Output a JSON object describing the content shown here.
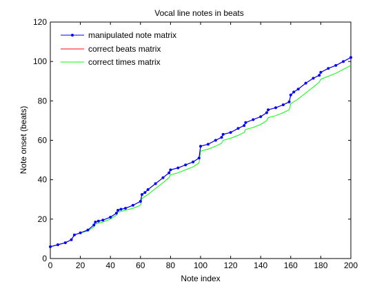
{
  "chart_data": {
    "type": "line",
    "title": "Vocal line notes in beats",
    "xlabel": "Note index",
    "ylabel": "Note onset (beats)",
    "xlim": [
      0,
      200
    ],
    "ylim": [
      0,
      120
    ],
    "xticks": [
      0,
      20,
      40,
      60,
      80,
      100,
      120,
      140,
      160,
      180,
      200
    ],
    "yticks": [
      0,
      20,
      40,
      60,
      80,
      100,
      120
    ],
    "grid": false,
    "legend_position": "top-left",
    "series": [
      {
        "name": "manipulated note matrix",
        "color": "#0000ff",
        "marker": "dot",
        "x": [
          0,
          5,
          10,
          14,
          16,
          20,
          25,
          29,
          30,
          32,
          35,
          40,
          44,
          45,
          47,
          50,
          55,
          60,
          61,
          63,
          65,
          70,
          75,
          79,
          80,
          85,
          90,
          95,
          99,
          100,
          105,
          110,
          114,
          115,
          120,
          125,
          129,
          130,
          135,
          140,
          144,
          145,
          150,
          155,
          159,
          160,
          162,
          165,
          170,
          175,
          179,
          180,
          185,
          190,
          195,
          200
        ],
        "y": [
          6,
          7,
          8,
          9.5,
          12,
          13,
          14.5,
          17,
          18.5,
          19,
          19.5,
          21,
          23,
          24.5,
          25,
          25.5,
          27,
          29,
          32.5,
          33.5,
          35,
          38,
          41,
          43.5,
          45,
          46,
          47.5,
          49,
          51,
          57,
          58,
          60,
          61.5,
          63,
          64,
          66,
          67.5,
          69,
          70.5,
          72,
          74,
          75.5,
          76.5,
          78,
          79.5,
          83,
          84.5,
          86,
          89,
          91.5,
          93,
          94.5,
          96.5,
          98,
          100,
          102
        ]
      },
      {
        "name": "correct beats matrix",
        "color": "#ff0000",
        "x": [
          0,
          5,
          10,
          14,
          16,
          20,
          25,
          29,
          30,
          32,
          35,
          40,
          44,
          45,
          47,
          50,
          55,
          60,
          61,
          63,
          65,
          70,
          75,
          79,
          80,
          85,
          90,
          95,
          99,
          100,
          105,
          110,
          114,
          115,
          120,
          125,
          129,
          130,
          135,
          140,
          144,
          145,
          150,
          155,
          159,
          160,
          162,
          165,
          170,
          175,
          179,
          180,
          185,
          190,
          195,
          200
        ],
        "y": [
          6,
          7,
          8,
          9.5,
          12,
          13,
          14.5,
          17,
          18.5,
          19,
          19.5,
          21,
          23,
          24.5,
          25,
          25.5,
          27,
          29,
          32.5,
          33.5,
          35,
          38,
          41,
          43.5,
          45,
          46,
          47.5,
          49,
          51,
          57,
          58,
          60,
          61.5,
          63,
          64,
          66,
          67.5,
          69,
          70.5,
          72,
          74,
          75.5,
          76.5,
          78,
          79.5,
          83,
          84.5,
          86,
          89,
          91.5,
          93,
          94.5,
          96.5,
          98,
          100,
          102
        ]
      },
      {
        "name": "correct times matrix",
        "color": "#00ff00",
        "x": [
          0,
          5,
          10,
          14,
          16,
          20,
          25,
          29,
          30,
          35,
          40,
          44,
          45,
          50,
          55,
          60,
          61,
          65,
          70,
          75,
          79,
          80,
          85,
          90,
          95,
          99,
          100,
          105,
          110,
          114,
          115,
          120,
          125,
          129,
          130,
          135,
          140,
          144,
          145,
          150,
          155,
          159,
          160,
          165,
          170,
          175,
          179,
          180,
          185,
          190,
          195,
          200
        ],
        "y": [
          6,
          7,
          8,
          9.5,
          12,
          13,
          14,
          16,
          17.5,
          18.5,
          20,
          22,
          23.5,
          24.5,
          25.5,
          27,
          30.5,
          32.5,
          35.5,
          38.5,
          41,
          42.5,
          43.5,
          45,
          46.5,
          48.5,
          54.5,
          55.5,
          57,
          58.5,
          60,
          61,
          62.5,
          64,
          65.5,
          66.5,
          68,
          70,
          71.5,
          72.5,
          74,
          75.5,
          78.5,
          81,
          84,
          87,
          89.5,
          91,
          92.5,
          94,
          96,
          98
        ]
      }
    ]
  }
}
